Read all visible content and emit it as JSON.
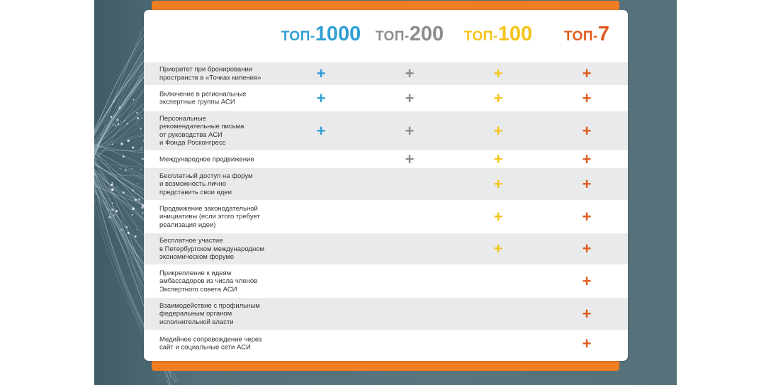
{
  "colors": {
    "top1000": "#2f9fd3",
    "top200": "#8c8c8c",
    "top100": "#f5c418",
    "top7": "#e15a1e",
    "accent_orange": "#ef7d22"
  },
  "tiers": [
    {
      "prefix": "ТОП-",
      "number": "1000"
    },
    {
      "prefix": "ТОП-",
      "number": "200"
    },
    {
      "prefix": "ТОП-",
      "number": "100"
    },
    {
      "prefix": "ТОП-",
      "number": "7"
    }
  ],
  "plus_symbol": "+",
  "rows": [
    {
      "label": "Приоритет при бронировании\nпространств в «Точках кипения»",
      "checks": [
        true,
        true,
        true,
        true
      ]
    },
    {
      "label": "Включение в региональные\nэкспертные группы АСИ",
      "checks": [
        true,
        true,
        true,
        true
      ]
    },
    {
      "label": "Персональные\nрекомендательные письма\nот руководства АСИ\nи Фонда Росконгресс",
      "checks": [
        true,
        true,
        true,
        true
      ]
    },
    {
      "label": "Международное продвижение",
      "checks": [
        false,
        true,
        true,
        true
      ]
    },
    {
      "label": "Бесплатный доступ на форум\nи возможность лично\nпредставить свои идеи",
      "checks": [
        false,
        false,
        true,
        true
      ]
    },
    {
      "label": "Продвижение законодательной\nинициативы (если этого требует\nреализация идеи)",
      "checks": [
        false,
        false,
        true,
        true
      ]
    },
    {
      "label": "Бесплатное участие\nв Петербургском международном\nэкономическом форуме",
      "checks": [
        false,
        false,
        true,
        true
      ]
    },
    {
      "label": "Прикрепление к идеям\nамбассадоров из числа членов\nЭкспертного совета АСИ",
      "checks": [
        false,
        false,
        false,
        true
      ]
    },
    {
      "label": "Взаимодействие с профильным\nфедеральным органом\nисполнительной власти",
      "checks": [
        false,
        false,
        false,
        true
      ]
    },
    {
      "label": "Медийное сопровождение через\nсайт и социальные сети АСИ",
      "checks": [
        false,
        false,
        false,
        true
      ]
    }
  ]
}
